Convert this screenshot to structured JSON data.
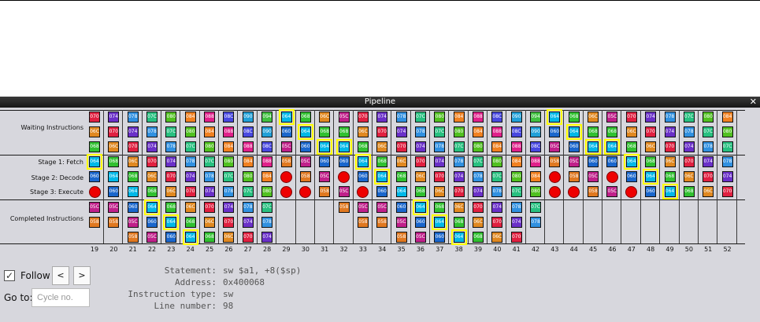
{
  "window": {
    "title": "Pipeline"
  },
  "rows": {
    "waiting": "Waiting Instructions",
    "fetch": "Stage 1: Fetch",
    "decode": "Stage 2: Decode",
    "execute": "Stage 3: Execute",
    "completed": "Completed Instructions"
  },
  "colors": {
    "054": "#d23a50",
    "058": "#e07820",
    "05C": "#c0208a",
    "060": "#1a66cc",
    "064": "#00b8e8",
    "068": "#30c030",
    "06C": "#e08820",
    "070": "#e02040",
    "074": "#6a30c8",
    "078": "#3090e0",
    "07C": "#28c080",
    "080": "#50c020",
    "084": "#f08020",
    "088": "#e0208a",
    "08C": "#4848e0",
    "090": "#20a0d8",
    "094": "#40c040",
    "stall": "#ee0000",
    "highlight": "#ffff00"
  },
  "cycles": [
    "19",
    "20",
    "21",
    "22",
    "23",
    "24",
    "25",
    "26",
    "27",
    "28",
    "29",
    "30",
    "31",
    "32",
    "33",
    "34",
    "35",
    "36",
    "37",
    "38",
    "39",
    "40",
    "41",
    "42",
    "43",
    "44",
    "45",
    "46",
    "47",
    "48",
    "49",
    "50",
    "51",
    "52"
  ],
  "columns": [
    {
      "w": [
        "070",
        "06C",
        "068"
      ],
      "f": "064",
      "d": "060",
      "e": "S",
      "c": [
        "05C",
        "058",
        ""
      ],
      "hf": 1
    },
    {
      "w": [
        "074",
        "070",
        "06C"
      ],
      "f": "068",
      "d": "064",
      "e": "060",
      "c": [
        "05C",
        "058",
        ""
      ]
    },
    {
      "w": [
        "078",
        "074",
        "070"
      ],
      "f": "06C",
      "d": "068",
      "e": "064",
      "c": [
        "060",
        "05C",
        "058"
      ]
    },
    {
      "w": [
        "07C",
        "078",
        "074"
      ],
      "f": "070",
      "d": "06C",
      "e": "068",
      "c": [
        "064",
        "060",
        "05C"
      ],
      "hc": 0
    },
    {
      "w": [
        "080",
        "07C",
        "078"
      ],
      "f": "074",
      "d": "070",
      "e": "06C",
      "c": [
        "068",
        "064",
        "060"
      ],
      "hc": 1
    },
    {
      "w": [
        "084",
        "080",
        "07C"
      ],
      "f": "078",
      "d": "074",
      "e": "070",
      "c": [
        "06C",
        "068",
        "064"
      ],
      "hc": 2
    },
    {
      "w": [
        "088",
        "084",
        "080"
      ],
      "f": "07C",
      "d": "078",
      "e": "074",
      "c": [
        "070",
        "06C",
        "068"
      ]
    },
    {
      "w": [
        "08C",
        "088",
        "084"
      ],
      "f": "080",
      "d": "07C",
      "e": "078",
      "c": [
        "074",
        "070",
        "06C"
      ]
    },
    {
      "w": [
        "090",
        "08C",
        "088"
      ],
      "f": "084",
      "d": "080",
      "e": "07C",
      "c": [
        "078",
        "074",
        "070"
      ]
    },
    {
      "w": [
        "094",
        "090",
        "08C"
      ],
      "f": "088",
      "d": "084",
      "e": "080",
      "c": [
        "07C",
        "078",
        "074"
      ]
    },
    {
      "w": [
        "064",
        "060",
        "05C"
      ],
      "f": "058",
      "d": "S",
      "e": "S",
      "c": [
        "",
        "",
        ""
      ],
      "hw": 0
    },
    {
      "w": [
        "068",
        "064",
        "060"
      ],
      "f": "05C",
      "d": "058",
      "e": "S",
      "c": [
        "",
        "",
        ""
      ],
      "hw": 1
    },
    {
      "w": [
        "06C",
        "068",
        "064"
      ],
      "f": "060",
      "d": "05C",
      "e": "058",
      "c": [
        "",
        "",
        ""
      ],
      "hw": 2
    },
    {
      "w": [
        "05C",
        "068",
        "064"
      ],
      "f": "060",
      "d": "S",
      "e": "05C",
      "c": [
        "058",
        "",
        ""
      ],
      "hw": 2
    },
    {
      "w": [
        "070",
        "06C",
        "068"
      ],
      "f": "064",
      "d": "060",
      "e": "S",
      "c": [
        "05C",
        "058",
        ""
      ],
      "hf": 1
    },
    {
      "w": [
        "074",
        "070",
        "06C"
      ],
      "f": "068",
      "d": "064",
      "e": "060",
      "c": [
        "05C",
        "058",
        ""
      ],
      "hd": 1
    },
    {
      "w": [
        "078",
        "074",
        "070"
      ],
      "f": "06C",
      "d": "068",
      "e": "064",
      "c": [
        "060",
        "05C",
        "058"
      ]
    },
    {
      "w": [
        "07C",
        "078",
        "074"
      ],
      "f": "070",
      "d": "06C",
      "e": "068",
      "c": [
        "064",
        "060",
        "05C"
      ],
      "hc": 0
    },
    {
      "w": [
        "080",
        "07C",
        "078"
      ],
      "f": "074",
      "d": "070",
      "e": "06C",
      "c": [
        "068",
        "064",
        "060"
      ],
      "hc": 1
    },
    {
      "w": [
        "084",
        "080",
        "07C"
      ],
      "f": "078",
      "d": "074",
      "e": "070",
      "c": [
        "06C",
        "068",
        "064"
      ],
      "hc": 2
    },
    {
      "w": [
        "088",
        "084",
        "080"
      ],
      "f": "07C",
      "d": "078",
      "e": "074",
      "c": [
        "070",
        "06C",
        "068"
      ]
    },
    {
      "w": [
        "08C",
        "088",
        "084"
      ],
      "f": "080",
      "d": "07C",
      "e": "078",
      "c": [
        "074",
        "070",
        "06C"
      ]
    },
    {
      "w": [
        "090",
        "08C",
        "088"
      ],
      "f": "084",
      "d": "080",
      "e": "07C",
      "c": [
        "078",
        "074",
        "070"
      ]
    },
    {
      "w": [
        "094",
        "090",
        "08C"
      ],
      "f": "088",
      "d": "084",
      "e": "080",
      "c": [
        "07C",
        "078",
        ""
      ]
    },
    {
      "w": [
        "064",
        "060",
        "05C"
      ],
      "f": "058",
      "d": "S",
      "e": "S",
      "c": [
        "",
        "",
        ""
      ],
      "hw": 0
    },
    {
      "w": [
        "068",
        "064",
        "060"
      ],
      "f": "05C",
      "d": "058",
      "e": "S",
      "c": [
        "",
        "",
        ""
      ],
      "hw": 1
    },
    {
      "w": [
        "06C",
        "068",
        "064"
      ],
      "f": "060",
      "d": "05C",
      "e": "058",
      "c": [
        "",
        "",
        ""
      ],
      "hw": 2
    },
    {
      "w": [
        "05C",
        "068",
        "064"
      ],
      "f": "060",
      "d": "S",
      "e": "05C",
      "c": [
        "",
        "",
        ""
      ],
      "hw": 2
    },
    {
      "w": [
        "070",
        "06C",
        "068"
      ],
      "f": "064",
      "d": "060",
      "e": "S",
      "c": [
        "",
        "",
        ""
      ],
      "hf": 1
    },
    {
      "w": [
        "074",
        "070",
        "06C"
      ],
      "f": "068",
      "d": "064",
      "e": "060",
      "c": [
        "",
        "",
        ""
      ],
      "hd": 1
    },
    {
      "w": [
        "078",
        "074",
        "070"
      ],
      "f": "06C",
      "d": "068",
      "e": "064",
      "c": [
        "",
        "",
        ""
      ],
      "he": 1
    },
    {
      "w": [
        "07C",
        "078",
        "074"
      ],
      "f": "070",
      "d": "06C",
      "e": "068",
      "c": [
        "",
        "",
        ""
      ]
    },
    {
      "w": [
        "080",
        "07C",
        "078"
      ],
      "f": "074",
      "d": "070",
      "e": "06C",
      "c": [
        "",
        "",
        ""
      ]
    },
    {
      "w": [
        "084",
        "080",
        "07C"
      ],
      "f": "078",
      "d": "074",
      "e": "070",
      "c": [
        "",
        "",
        ""
      ]
    }
  ],
  "controls": {
    "follow": "Follow",
    "prev": "<",
    "next": ">",
    "goto": "Go to:",
    "cycle_placeholder": "Cycle no."
  },
  "info": {
    "statement_label": "Statement:",
    "statement": "sw $a1, +8($sp)",
    "address_label": "Address:",
    "address": "0x400068",
    "type_label": "Instruction type:",
    "type": "sw",
    "line_label": "Line number:",
    "line": "98"
  }
}
